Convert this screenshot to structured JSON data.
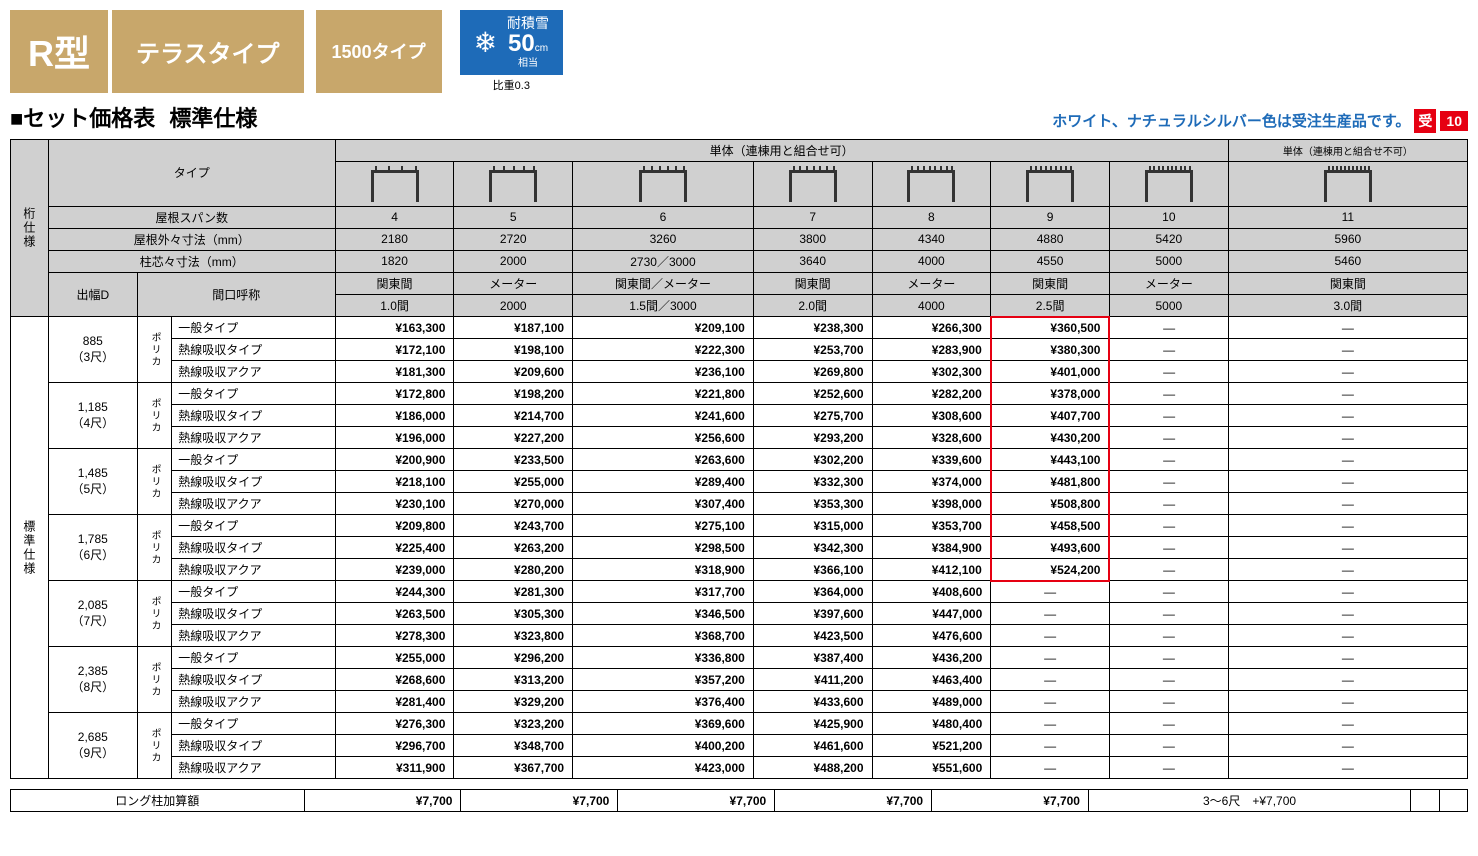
{
  "header": {
    "rtype": "R型",
    "terrace": "テラスタイプ",
    "type1500": "1500タイプ",
    "snow_label": "耐積雪",
    "snow_value": "50",
    "snow_unit": "cm",
    "snow_sub": "相当",
    "snow_note": "比重0.3"
  },
  "subtitle": {
    "black": "■",
    "set": "セット価格表",
    "spec": "標準仕様"
  },
  "notice": {
    "text": "ホワイト、ナチュラルシルバー色は受注生産品です。",
    "uke": "受",
    "ten": "10"
  },
  "colh": {
    "tantai1": "単体（連棟用と組合せ可）",
    "tantai2": "単体（連棟用と組合せ不可）",
    "type": "タイプ",
    "keta": "桁仕様",
    "demabaD": "出幅D",
    "span": "屋根スパン数",
    "gaigai": "屋根外々寸法（mm）",
    "shinshin": "柱芯々寸法（mm）",
    "maguchi": "間口呼称",
    "hyojun": "標準仕様",
    "polyca": "ポリカ"
  },
  "spans": [
    "4",
    "5",
    "6",
    "7",
    "8",
    "9",
    "10",
    "11"
  ],
  "gaigai": [
    "2180",
    "2720",
    "3260",
    "3800",
    "4340",
    "4880",
    "5420",
    "5960"
  ],
  "shinshin": [
    "1820",
    "2000",
    "2730／3000",
    "3640",
    "4000",
    "4550",
    "5000",
    "5460"
  ],
  "maguchi1": [
    "関東間",
    "メーター",
    "関東間／メーター",
    "関東間",
    "メーター",
    "関東間",
    "メーター",
    "関東間"
  ],
  "maguchi2": [
    "1.0間",
    "2000",
    "1.5間／3000",
    "2.0間",
    "4000",
    "2.5間",
    "5000",
    "3.0間"
  ],
  "depths": [
    {
      "d": "885",
      "shaku": "（3尺）"
    },
    {
      "d": "1,185",
      "shaku": "（4尺）"
    },
    {
      "d": "1,485",
      "shaku": "（5尺）"
    },
    {
      "d": "1,785",
      "shaku": "（6尺）"
    },
    {
      "d": "2,085",
      "shaku": "（7尺）"
    },
    {
      "d": "2,385",
      "shaku": "（8尺）"
    },
    {
      "d": "2,685",
      "shaku": "（9尺）"
    }
  ],
  "rowTypes": [
    "一般タイプ",
    "熱線吸収タイプ",
    "熱線吸収アクア"
  ],
  "prices": [
    [
      [
        "¥163,300",
        "¥187,100",
        "¥209,100",
        "¥238,300",
        "¥266,300",
        "¥360,500",
        "—",
        "—"
      ],
      [
        "¥172,100",
        "¥198,100",
        "¥222,300",
        "¥253,700",
        "¥283,900",
        "¥380,300",
        "—",
        "—"
      ],
      [
        "¥181,300",
        "¥209,600",
        "¥236,100",
        "¥269,800",
        "¥302,300",
        "¥401,000",
        "—",
        "—"
      ]
    ],
    [
      [
        "¥172,800",
        "¥198,200",
        "¥221,800",
        "¥252,600",
        "¥282,200",
        "¥378,000",
        "—",
        "—"
      ],
      [
        "¥186,000",
        "¥214,700",
        "¥241,600",
        "¥275,700",
        "¥308,600",
        "¥407,700",
        "—",
        "—"
      ],
      [
        "¥196,000",
        "¥227,200",
        "¥256,600",
        "¥293,200",
        "¥328,600",
        "¥430,200",
        "—",
        "—"
      ]
    ],
    [
      [
        "¥200,900",
        "¥233,500",
        "¥263,600",
        "¥302,200",
        "¥339,600",
        "¥443,100",
        "—",
        "—"
      ],
      [
        "¥218,100",
        "¥255,000",
        "¥289,400",
        "¥332,300",
        "¥374,000",
        "¥481,800",
        "—",
        "—"
      ],
      [
        "¥230,100",
        "¥270,000",
        "¥307,400",
        "¥353,300",
        "¥398,000",
        "¥508,800",
        "—",
        "—"
      ]
    ],
    [
      [
        "¥209,800",
        "¥243,700",
        "¥275,100",
        "¥315,000",
        "¥353,700",
        "¥458,500",
        "—",
        "—"
      ],
      [
        "¥225,400",
        "¥263,200",
        "¥298,500",
        "¥342,300",
        "¥384,900",
        "¥493,600",
        "—",
        "—"
      ],
      [
        "¥239,000",
        "¥280,200",
        "¥318,900",
        "¥366,100",
        "¥412,100",
        "¥524,200",
        "—",
        "—"
      ]
    ],
    [
      [
        "¥244,300",
        "¥281,300",
        "¥317,700",
        "¥364,000",
        "¥408,600",
        "—",
        "—",
        "—"
      ],
      [
        "¥263,500",
        "¥305,300",
        "¥346,500",
        "¥397,600",
        "¥447,000",
        "—",
        "—",
        "—"
      ],
      [
        "¥278,300",
        "¥323,800",
        "¥368,700",
        "¥423,500",
        "¥476,600",
        "—",
        "—",
        "—"
      ]
    ],
    [
      [
        "¥255,000",
        "¥296,200",
        "¥336,800",
        "¥387,400",
        "¥436,200",
        "—",
        "—",
        "—"
      ],
      [
        "¥268,600",
        "¥313,200",
        "¥357,200",
        "¥411,200",
        "¥463,400",
        "—",
        "—",
        "—"
      ],
      [
        "¥281,400",
        "¥329,200",
        "¥376,400",
        "¥433,600",
        "¥489,000",
        "—",
        "—",
        "—"
      ]
    ],
    [
      [
        "¥276,300",
        "¥323,200",
        "¥369,600",
        "¥425,900",
        "¥480,400",
        "—",
        "—",
        "—"
      ],
      [
        "¥296,700",
        "¥348,700",
        "¥400,200",
        "¥461,600",
        "¥521,200",
        "—",
        "—",
        "—"
      ],
      [
        "¥311,900",
        "¥367,700",
        "¥423,000",
        "¥488,200",
        "¥551,600",
        "—",
        "—",
        "—"
      ]
    ]
  ],
  "highlight": {
    "depths": [
      0,
      1,
      2,
      3
    ],
    "col": 5
  },
  "long": {
    "label": "ロング柱加算額",
    "vals": [
      "¥7,700",
      "¥7,700",
      "¥7,700",
      "¥7,700",
      "¥7,700",
      "3～6尺　+¥7,700",
      "",
      ""
    ]
  },
  "style": {
    "accent": "#c8a76b",
    "accent_text": "#ffffff",
    "snow_bg": "#1e6bb8",
    "highlight_color": "#e60012",
    "header_bg": "#d0d0d0",
    "border": "#000000"
  }
}
